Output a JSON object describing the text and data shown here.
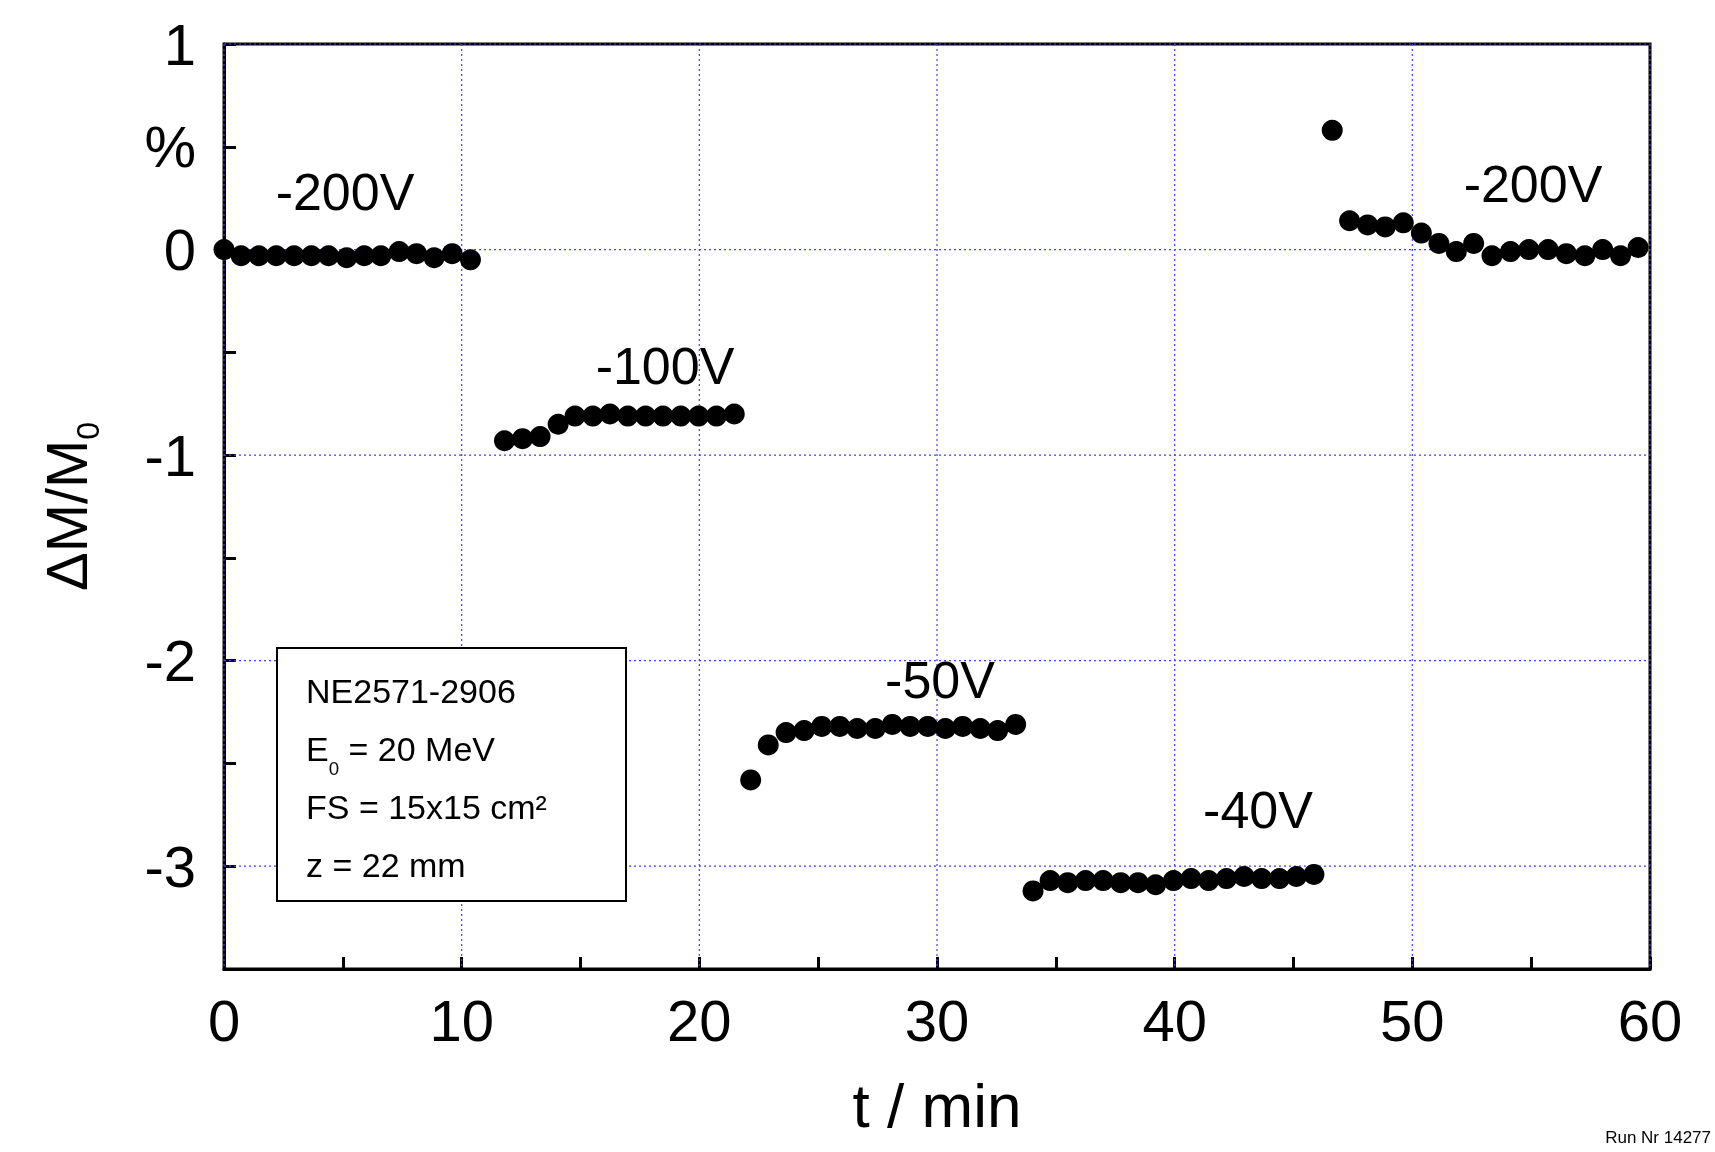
{
  "chart_data": {
    "type": "scatter",
    "xlabel": "t / min",
    "ylabel": "ΔM/M$_{0}$",
    "x": [
      0,
      0.72,
      1.47,
      2.2,
      2.95,
      3.68,
      4.4,
      5.16,
      5.9,
      6.6,
      7.37,
      8.1,
      8.84,
      9.6,
      10.37,
      11.8,
      12.56,
      13.3,
      14.06,
      14.77,
      15.52,
      16.24,
      16.99,
      17.74,
      18.47,
      19.22,
      19.97,
      20.72,
      21.47,
      22.16,
      22.9,
      23.65,
      24.41,
      25.15,
      25.91,
      26.64,
      27.4,
      28.12,
      28.87,
      29.61,
      30.35,
      31.08,
      31.82,
      32.55,
      33.31,
      34.04,
      34.76,
      35.5,
      36.25,
      36.99,
      37.73,
      38.46,
      39.2,
      39.95,
      40.69,
      41.43,
      42.18,
      42.92,
      43.66,
      44.41,
      45.12,
      45.86,
      46.63,
      47.36,
      48.12,
      48.86,
      49.62,
      50.38,
      51.12,
      51.85,
      52.58,
      53.35,
      54.13,
      54.9,
      55.71,
      56.48,
      57.26,
      58.01,
      58.76,
      59.5
    ],
    "series": [
      {
        "color": "#000000",
        "values": [
          0,
          -0.03,
          -0.03,
          -0.03,
          -0.03,
          -0.03,
          -0.03,
          -0.04,
          -0.03,
          -0.03,
          -0.01,
          -0.02,
          -0.04,
          -0.02,
          -0.05,
          -0.93,
          -0.92,
          -0.91,
          -0.85,
          -0.81,
          -0.81,
          -0.8,
          -0.81,
          -0.81,
          -0.81,
          -0.81,
          -0.81,
          -0.81,
          -0.8,
          -2.58,
          -2.41,
          -2.35,
          -2.34,
          -2.32,
          -2.32,
          -2.33,
          -2.33,
          -2.31,
          -2.32,
          -2.32,
          -2.33,
          -2.32,
          -2.33,
          -2.34,
          -2.31,
          -3.12,
          -3.07,
          -3.08,
          -3.07,
          -3.07,
          -3.08,
          -3.08,
          -3.09,
          -3.07,
          -3.06,
          -3.07,
          -3.06,
          -3.05,
          -3.06,
          -3.06,
          -3.05,
          -3.04,
          0.58,
          0.14,
          0.12,
          0.11,
          0.13,
          0.08,
          0.03,
          -0.01,
          0.03,
          -0.03,
          -0.01,
          0,
          0,
          -0.02,
          -0.03,
          0,
          -0.03,
          0.01
        ]
      }
    ],
    "marker": "circle",
    "xlim": [
      0,
      60
    ],
    "xticks": [
      0,
      {
        "value": 5,
        "label": null
      },
      10,
      {
        "value": 15,
        "label": null
      },
      20,
      {
        "value": 25,
        "label": null
      },
      30,
      {
        "value": 35,
        "label": null
      },
      40,
      {
        "value": 45,
        "label": null
      },
      50,
      {
        "value": 55,
        "label": null
      },
      60
    ],
    "ylim": [
      -3.5,
      1
    ],
    "yticks": [
      {
        "value": -3.5,
        "label": null
      },
      -3,
      {
        "value": -2.5,
        "label": null
      },
      -2,
      {
        "value": -1.5,
        "label": null
      },
      -1,
      {
        "value": -0.5,
        "label": null
      },
      0,
      {
        "value": 0.5,
        "label": "%"
      },
      1
    ],
    "grid": true,
    "annotations": [
      "-200V",
      "-100V",
      "-50V",
      "-40V",
      "-200V",
      "NE2571-2906",
      "E$_{0}$ = 20 MeV",
      "FS = 15x15 cm²",
      "z = 22 mm",
      "Run Nr 14277"
    ]
  }
}
